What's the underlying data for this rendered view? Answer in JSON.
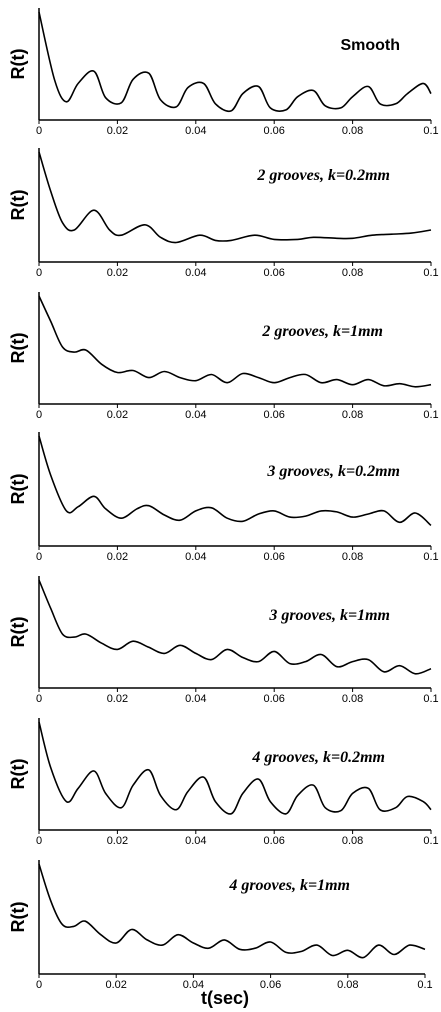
{
  "figure": {
    "xlabel": "t(sec)"
  },
  "chart_data": [
    {
      "type": "line",
      "title": "Smooth",
      "title_style": "plain",
      "ylabel": "R(t)",
      "xlim": [
        0,
        0.1
      ],
      "xticks": [
        "0",
        "0.02",
        "0.04",
        "0.06",
        "0.08",
        "0.1"
      ],
      "series": [
        {
          "x": [
            0,
            0.004,
            0.007,
            0.01,
            0.014,
            0.017,
            0.021,
            0.024,
            0.028,
            0.031,
            0.035,
            0.038,
            0.042,
            0.045,
            0.049,
            0.052,
            0.056,
            0.059,
            0.063,
            0.066,
            0.07,
            0.073,
            0.077,
            0.08,
            0.084,
            0.087,
            0.091,
            0.094,
            0.098,
            0.1
          ],
          "y": [
            1.0,
            0.33,
            0.12,
            0.3,
            0.42,
            0.16,
            0.11,
            0.34,
            0.4,
            0.14,
            0.07,
            0.26,
            0.3,
            0.1,
            0.03,
            0.2,
            0.27,
            0.06,
            0.04,
            0.17,
            0.23,
            0.08,
            0.06,
            0.17,
            0.27,
            0.1,
            0.1,
            0.2,
            0.3,
            0.2
          ]
        }
      ]
    },
    {
      "type": "line",
      "title": "2 grooves, k=0.2mm",
      "title_style": "italic",
      "ylabel": "R(t)",
      "xlim": [
        0,
        0.1
      ],
      "xticks": [
        "0",
        "0.02",
        "0.04",
        "0.06",
        "0.08",
        "0.1"
      ],
      "series": [
        {
          "x": [
            0,
            0.003,
            0.006,
            0.009,
            0.014,
            0.018,
            0.021,
            0.027,
            0.031,
            0.035,
            0.041,
            0.045,
            0.049,
            0.055,
            0.06,
            0.066,
            0.07,
            0.076,
            0.08,
            0.085,
            0.09,
            0.095,
            0.1
          ],
          "y": [
            1.0,
            0.62,
            0.32,
            0.25,
            0.44,
            0.25,
            0.2,
            0.3,
            0.18,
            0.13,
            0.2,
            0.15,
            0.15,
            0.2,
            0.16,
            0.16,
            0.18,
            0.17,
            0.17,
            0.2,
            0.21,
            0.22,
            0.25
          ]
        }
      ]
    },
    {
      "type": "line",
      "title": "2 grooves, k=1mm",
      "title_style": "italic",
      "ylabel": "R(t)",
      "xlim": [
        0,
        0.1
      ],
      "xticks": [
        "0",
        "0.02",
        "0.04",
        "0.06",
        "0.08",
        "0.1"
      ],
      "series": [
        {
          "x": [
            0,
            0.003,
            0.006,
            0.009,
            0.012,
            0.016,
            0.02,
            0.024,
            0.028,
            0.032,
            0.036,
            0.04,
            0.044,
            0.048,
            0.052,
            0.056,
            0.06,
            0.064,
            0.068,
            0.072,
            0.076,
            0.08,
            0.084,
            0.088,
            0.092,
            0.096,
            0.1
          ],
          "y": [
            1.0,
            0.75,
            0.5,
            0.45,
            0.47,
            0.33,
            0.25,
            0.27,
            0.2,
            0.26,
            0.2,
            0.17,
            0.23,
            0.15,
            0.24,
            0.2,
            0.15,
            0.2,
            0.23,
            0.15,
            0.18,
            0.13,
            0.18,
            0.12,
            0.14,
            0.11,
            0.13
          ]
        }
      ]
    },
    {
      "type": "line",
      "title": "3 grooves, k=0.2mm",
      "title_style": "italic",
      "ylabel": "R(t)",
      "xlim": [
        0,
        0.1
      ],
      "xticks": [
        "0",
        "0.02",
        "0.04",
        "0.06",
        "0.08",
        "0.1"
      ],
      "series": [
        {
          "x": [
            0,
            0.003,
            0.007,
            0.01,
            0.014,
            0.017,
            0.021,
            0.025,
            0.028,
            0.032,
            0.036,
            0.04,
            0.044,
            0.048,
            0.052,
            0.056,
            0.06,
            0.064,
            0.068,
            0.072,
            0.076,
            0.08,
            0.084,
            0.088,
            0.092,
            0.096,
            0.1
          ],
          "y": [
            1.0,
            0.62,
            0.28,
            0.32,
            0.42,
            0.3,
            0.21,
            0.3,
            0.33,
            0.24,
            0.19,
            0.28,
            0.31,
            0.21,
            0.18,
            0.25,
            0.28,
            0.22,
            0.23,
            0.28,
            0.27,
            0.22,
            0.25,
            0.28,
            0.17,
            0.26,
            0.14
          ]
        }
      ]
    },
    {
      "type": "line",
      "title": "3 grooves, k=1mm",
      "title_style": "italic",
      "ylabel": "R(t)",
      "xlim": [
        0,
        0.1
      ],
      "xticks": [
        "0",
        "0.02",
        "0.04",
        "0.06",
        "0.08",
        "0.1"
      ],
      "series": [
        {
          "x": [
            0,
            0.003,
            0.006,
            0.009,
            0.012,
            0.016,
            0.02,
            0.024,
            0.028,
            0.032,
            0.036,
            0.04,
            0.044,
            0.048,
            0.052,
            0.056,
            0.06,
            0.064,
            0.068,
            0.072,
            0.076,
            0.08,
            0.084,
            0.088,
            0.092,
            0.096,
            0.1
          ],
          "y": [
            1.0,
            0.72,
            0.47,
            0.44,
            0.47,
            0.38,
            0.32,
            0.4,
            0.34,
            0.28,
            0.36,
            0.28,
            0.22,
            0.32,
            0.24,
            0.2,
            0.3,
            0.18,
            0.2,
            0.27,
            0.15,
            0.2,
            0.22,
            0.1,
            0.16,
            0.08,
            0.13
          ]
        }
      ]
    },
    {
      "type": "line",
      "title": "4 grooves, k=0.2mm",
      "title_style": "italic",
      "ylabel": "R(t)",
      "xlim": [
        0,
        0.1
      ],
      "xticks": [
        "0",
        "0.02",
        "0.04",
        "0.06",
        "0.08",
        "0.1"
      ],
      "series": [
        {
          "x": [
            0,
            0.003,
            0.007,
            0.01,
            0.014,
            0.017,
            0.021,
            0.024,
            0.028,
            0.031,
            0.035,
            0.038,
            0.042,
            0.045,
            0.049,
            0.052,
            0.056,
            0.059,
            0.063,
            0.066,
            0.07,
            0.073,
            0.077,
            0.08,
            0.084,
            0.087,
            0.091,
            0.094,
            0.098,
            0.1
          ],
          "y": [
            1.0,
            0.55,
            0.22,
            0.35,
            0.52,
            0.3,
            0.16,
            0.38,
            0.53,
            0.28,
            0.14,
            0.32,
            0.46,
            0.22,
            0.1,
            0.3,
            0.44,
            0.22,
            0.1,
            0.28,
            0.38,
            0.16,
            0.13,
            0.3,
            0.35,
            0.14,
            0.16,
            0.27,
            0.22,
            0.14
          ]
        }
      ]
    },
    {
      "type": "line",
      "title": "4 grooves, k=1mm",
      "title_style": "italic",
      "ylabel": "R(t)",
      "xlim": [
        0,
        0.1
      ],
      "xticks": [
        "0",
        "0.02",
        "0.04",
        "0.06",
        "0.08",
        "0.1"
      ],
      "series": [
        {
          "x": [
            0,
            0.003,
            0.006,
            0.009,
            0.012,
            0.016,
            0.02,
            0.024,
            0.028,
            0.032,
            0.036,
            0.04,
            0.044,
            0.048,
            0.052,
            0.056,
            0.06,
            0.064,
            0.068,
            0.072,
            0.076,
            0.08,
            0.084,
            0.088,
            0.092,
            0.096,
            0.1
          ],
          "y": [
            1.0,
            0.65,
            0.42,
            0.4,
            0.45,
            0.32,
            0.24,
            0.37,
            0.27,
            0.22,
            0.32,
            0.24,
            0.19,
            0.27,
            0.18,
            0.19,
            0.25,
            0.15,
            0.16,
            0.22,
            0.12,
            0.17,
            0.1,
            0.22,
            0.13,
            0.22,
            0.18
          ]
        }
      ]
    }
  ]
}
